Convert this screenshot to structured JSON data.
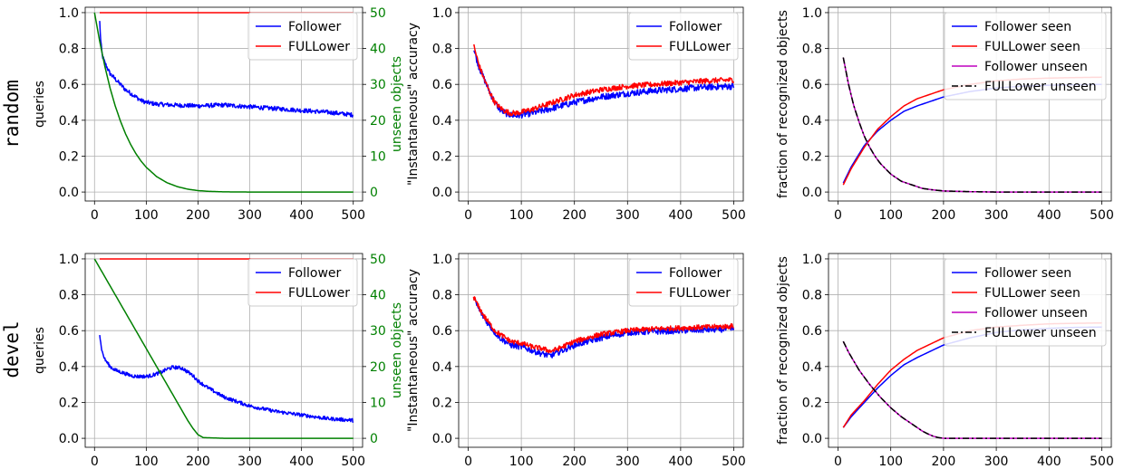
{
  "row_labels": [
    "random",
    "devel"
  ],
  "chart_data": [
    {
      "id": "random-queries",
      "type": "line",
      "ylabel": "queries",
      "y2label": "unseen objects",
      "xlim": [
        -18,
        518
      ],
      "ylim": [
        -0.05,
        1.03
      ],
      "y2lim": [
        -2.5,
        51.5
      ],
      "xticks": [
        0,
        100,
        200,
        300,
        400,
        500
      ],
      "yticks": [
        0.0,
        0.2,
        0.4,
        0.6,
        0.8,
        1.0
      ],
      "y2ticks": [
        0,
        10,
        20,
        30,
        40,
        50
      ],
      "grid": true,
      "legend_position": "top-right",
      "series": [
        {
          "name": "Follower",
          "color": "#0000ff",
          "axis": "left",
          "noise": 0.012,
          "x": [
            10,
            12,
            15,
            20,
            30,
            40,
            50,
            60,
            70,
            80,
            90,
            100,
            120,
            150,
            200,
            250,
            300,
            350,
            400,
            450,
            500
          ],
          "y": [
            0.95,
            0.84,
            0.76,
            0.72,
            0.66,
            0.63,
            0.6,
            0.57,
            0.55,
            0.53,
            0.51,
            0.5,
            0.49,
            0.485,
            0.48,
            0.485,
            0.475,
            0.465,
            0.455,
            0.445,
            0.43
          ]
        },
        {
          "name": "FULLower",
          "color": "#ff0000",
          "axis": "left",
          "noise": 0,
          "x": [
            10,
            500
          ],
          "y": [
            1.0,
            1.0
          ]
        },
        {
          "color": "#008000",
          "axis": "right",
          "noise": 0,
          "x": [
            0,
            10,
            20,
            30,
            40,
            50,
            60,
            70,
            80,
            90,
            100,
            120,
            140,
            160,
            180,
            200,
            220,
            250,
            300,
            400,
            500
          ],
          "y": [
            50,
            42,
            35,
            29,
            24,
            19.8,
            16.2,
            13.2,
            10.7,
            8.6,
            6.9,
            4.3,
            2.6,
            1.5,
            0.8,
            0.4,
            0.2,
            0.05,
            0,
            0,
            0
          ]
        }
      ]
    },
    {
      "id": "random-accuracy",
      "type": "line",
      "ylabel": "\"Instantaneous\" accuracy",
      "xlim": [
        -18,
        518
      ],
      "ylim": [
        -0.05,
        1.03
      ],
      "xticks": [
        0,
        100,
        200,
        300,
        400,
        500
      ],
      "yticks": [
        0.0,
        0.2,
        0.4,
        0.6,
        0.8,
        1.0
      ],
      "grid": true,
      "legend_position": "top-right",
      "series": [
        {
          "name": "Follower",
          "color": "#0000ff",
          "noise": 0.018,
          "x": [
            10,
            20,
            30,
            40,
            50,
            60,
            70,
            80,
            90,
            100,
            120,
            150,
            200,
            250,
            300,
            350,
            400,
            450,
            500
          ],
          "y": [
            0.8,
            0.7,
            0.63,
            0.56,
            0.5,
            0.46,
            0.44,
            0.43,
            0.425,
            0.43,
            0.44,
            0.46,
            0.5,
            0.53,
            0.55,
            0.565,
            0.575,
            0.585,
            0.59
          ]
        },
        {
          "name": "FULLower",
          "color": "#ff0000",
          "noise": 0.015,
          "x": [
            10,
            20,
            30,
            40,
            50,
            60,
            70,
            80,
            90,
            100,
            120,
            150,
            200,
            250,
            300,
            350,
            400,
            450,
            500
          ],
          "y": [
            0.82,
            0.71,
            0.63,
            0.56,
            0.5,
            0.47,
            0.45,
            0.44,
            0.44,
            0.445,
            0.46,
            0.49,
            0.54,
            0.57,
            0.59,
            0.6,
            0.61,
            0.62,
            0.625
          ]
        }
      ]
    },
    {
      "id": "random-recognized",
      "type": "line",
      "ylabel": "fraction of recognized objects",
      "xlim": [
        -18,
        518
      ],
      "ylim": [
        -0.05,
        1.03
      ],
      "xticks": [
        0,
        100,
        200,
        300,
        400,
        500
      ],
      "yticks": [
        0.0,
        0.2,
        0.4,
        0.6,
        0.8,
        1.0
      ],
      "grid": true,
      "legend_position": "top-right",
      "series": [
        {
          "name": "Follower seen",
          "color": "#0000ff",
          "noise": 0,
          "x": [
            10,
            25,
            50,
            75,
            100,
            125,
            150,
            200,
            250,
            300,
            350,
            400,
            450,
            500
          ],
          "y": [
            0.05,
            0.14,
            0.26,
            0.34,
            0.4,
            0.45,
            0.48,
            0.53,
            0.56,
            0.58,
            0.59,
            0.595,
            0.598,
            0.6
          ]
        },
        {
          "name": "FULLower seen",
          "color": "#ff0000",
          "noise": 0,
          "x": [
            10,
            25,
            50,
            75,
            100,
            125,
            150,
            200,
            250,
            300,
            350,
            400,
            450,
            500
          ],
          "y": [
            0.04,
            0.13,
            0.25,
            0.35,
            0.42,
            0.48,
            0.52,
            0.57,
            0.6,
            0.62,
            0.63,
            0.635,
            0.638,
            0.64
          ]
        },
        {
          "name": "Follower unseen",
          "color": "#bf00bf",
          "noise": 0,
          "x": [
            10,
            20,
            30,
            40,
            50,
            60,
            70,
            80,
            90,
            100,
            120,
            140,
            160,
            180,
            200,
            250,
            300,
            500
          ],
          "y": [
            0.75,
            0.6,
            0.48,
            0.39,
            0.31,
            0.25,
            0.2,
            0.16,
            0.13,
            0.1,
            0.06,
            0.04,
            0.02,
            0.012,
            0.006,
            0.002,
            0,
            0
          ]
        },
        {
          "name": "FULLower unseen",
          "color": "#000000",
          "dash": "7,3,2,3",
          "noise": 0,
          "x": [
            10,
            20,
            30,
            40,
            50,
            60,
            70,
            80,
            90,
            100,
            120,
            140,
            160,
            180,
            200,
            250,
            300,
            500
          ],
          "y": [
            0.75,
            0.6,
            0.48,
            0.39,
            0.31,
            0.25,
            0.2,
            0.16,
            0.13,
            0.1,
            0.06,
            0.04,
            0.02,
            0.012,
            0.006,
            0.002,
            0,
            0
          ]
        }
      ]
    },
    {
      "id": "devel-queries",
      "type": "line",
      "ylabel": "queries",
      "y2label": "unseen objects",
      "xlim": [
        -18,
        518
      ],
      "ylim": [
        -0.05,
        1.03
      ],
      "y2lim": [
        -2.5,
        51.5
      ],
      "xticks": [
        0,
        100,
        200,
        300,
        400,
        500
      ],
      "yticks": [
        0.0,
        0.2,
        0.4,
        0.6,
        0.8,
        1.0
      ],
      "y2ticks": [
        0,
        10,
        20,
        30,
        40,
        50
      ],
      "grid": true,
      "legend_position": "top-right",
      "series": [
        {
          "name": "Follower",
          "color": "#0000ff",
          "axis": "left",
          "noise": 0.01,
          "x": [
            10,
            12,
            15,
            20,
            30,
            40,
            50,
            60,
            70,
            80,
            90,
            100,
            110,
            120,
            130,
            140,
            150,
            160,
            170,
            180,
            190,
            200,
            220,
            250,
            300,
            350,
            400,
            450,
            500
          ],
          "y": [
            0.58,
            0.53,
            0.48,
            0.44,
            0.4,
            0.38,
            0.37,
            0.36,
            0.35,
            0.345,
            0.345,
            0.345,
            0.35,
            0.36,
            0.37,
            0.385,
            0.395,
            0.395,
            0.39,
            0.37,
            0.35,
            0.32,
            0.28,
            0.23,
            0.18,
            0.15,
            0.13,
            0.11,
            0.1
          ]
        },
        {
          "name": "FULLower",
          "color": "#ff0000",
          "axis": "left",
          "noise": 0,
          "x": [
            10,
            500
          ],
          "y": [
            1.0,
            1.0
          ]
        },
        {
          "color": "#008000",
          "axis": "right",
          "noise": 0,
          "x": [
            0,
            20,
            40,
            60,
            80,
            100,
            120,
            140,
            160,
            170,
            180,
            190,
            200,
            210,
            250,
            500
          ],
          "y": [
            50,
            45,
            40,
            35,
            30,
            25,
            20,
            15,
            10,
            7.5,
            5,
            2.8,
            1,
            0.2,
            0,
            0
          ]
        }
      ]
    },
    {
      "id": "devel-accuracy",
      "type": "line",
      "ylabel": "\"Instantaneous\" accuracy",
      "xlim": [
        -18,
        518
      ],
      "ylim": [
        -0.05,
        1.03
      ],
      "xticks": [
        0,
        100,
        200,
        300,
        400,
        500
      ],
      "yticks": [
        0.0,
        0.2,
        0.4,
        0.6,
        0.8,
        1.0
      ],
      "grid": true,
      "legend_position": "top-right",
      "series": [
        {
          "name": "Follower",
          "color": "#0000ff",
          "noise": 0.017,
          "x": [
            10,
            20,
            30,
            40,
            50,
            60,
            70,
            80,
            100,
            120,
            140,
            155,
            170,
            200,
            250,
            300,
            350,
            400,
            450,
            500
          ],
          "y": [
            0.78,
            0.72,
            0.67,
            0.63,
            0.59,
            0.56,
            0.54,
            0.52,
            0.51,
            0.49,
            0.47,
            0.46,
            0.48,
            0.52,
            0.56,
            0.59,
            0.595,
            0.6,
            0.605,
            0.61
          ]
        },
        {
          "name": "FULLower",
          "color": "#ff0000",
          "noise": 0.014,
          "x": [
            10,
            20,
            30,
            40,
            50,
            60,
            70,
            80,
            100,
            120,
            140,
            155,
            170,
            200,
            250,
            300,
            350,
            400,
            450,
            500
          ],
          "y": [
            0.79,
            0.73,
            0.68,
            0.64,
            0.6,
            0.58,
            0.56,
            0.54,
            0.53,
            0.51,
            0.5,
            0.485,
            0.5,
            0.54,
            0.58,
            0.6,
            0.61,
            0.615,
            0.62,
            0.625
          ]
        }
      ]
    },
    {
      "id": "devel-recognized",
      "type": "line",
      "ylabel": "fraction of recognized objects",
      "xlim": [
        -18,
        518
      ],
      "ylim": [
        -0.05,
        1.03
      ],
      "xticks": [
        0,
        100,
        200,
        300,
        400,
        500
      ],
      "yticks": [
        0.0,
        0.2,
        0.4,
        0.6,
        0.8,
        1.0
      ],
      "grid": true,
      "legend_position": "top-right",
      "series": [
        {
          "name": "Follower seen",
          "color": "#0000ff",
          "noise": 0,
          "x": [
            10,
            25,
            50,
            75,
            100,
            125,
            150,
            200,
            250,
            300,
            350,
            400,
            450,
            500
          ],
          "y": [
            0.06,
            0.12,
            0.2,
            0.28,
            0.35,
            0.41,
            0.45,
            0.52,
            0.56,
            0.59,
            0.605,
            0.613,
            0.618,
            0.62
          ]
        },
        {
          "name": "FULLower seen",
          "color": "#ff0000",
          "noise": 0,
          "x": [
            10,
            25,
            50,
            75,
            100,
            125,
            150,
            200,
            250,
            300,
            350,
            400,
            450,
            500
          ],
          "y": [
            0.06,
            0.13,
            0.21,
            0.3,
            0.38,
            0.44,
            0.49,
            0.56,
            0.6,
            0.62,
            0.63,
            0.638,
            0.641,
            0.643
          ]
        },
        {
          "name": "Follower unseen",
          "color": "#bf00bf",
          "noise": 0,
          "x": [
            10,
            20,
            40,
            60,
            80,
            100,
            120,
            140,
            160,
            170,
            180,
            190,
            200,
            250,
            500
          ],
          "y": [
            0.54,
            0.48,
            0.38,
            0.3,
            0.23,
            0.17,
            0.12,
            0.08,
            0.04,
            0.025,
            0.012,
            0.004,
            0,
            0,
            0
          ]
        },
        {
          "name": "FULLower unseen",
          "color": "#000000",
          "dash": "7,3,2,3",
          "noise": 0,
          "x": [
            10,
            20,
            40,
            60,
            80,
            100,
            120,
            140,
            160,
            170,
            180,
            190,
            200,
            250,
            500
          ],
          "y": [
            0.54,
            0.48,
            0.38,
            0.3,
            0.23,
            0.17,
            0.12,
            0.08,
            0.04,
            0.025,
            0.012,
            0.004,
            0,
            0,
            0
          ]
        }
      ]
    }
  ]
}
